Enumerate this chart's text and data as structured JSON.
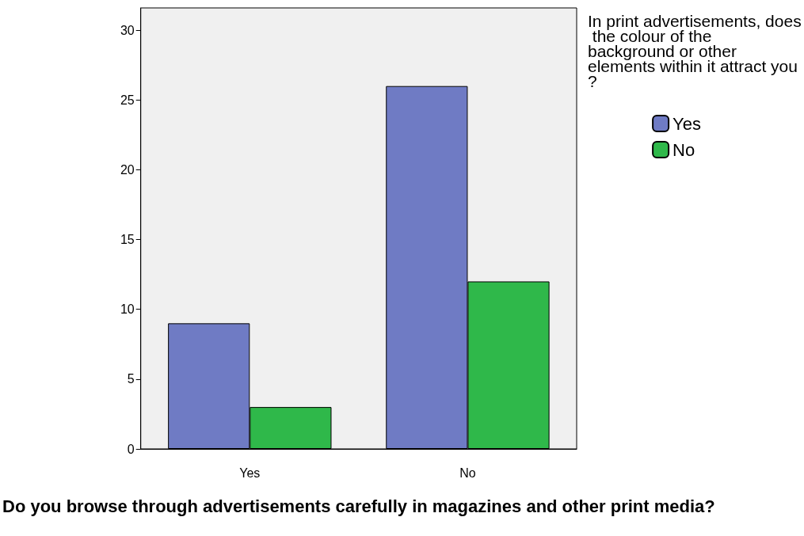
{
  "chart_data": {
    "type": "bar",
    "xlabel": "Do you browse through advertisements carefully in magazines and other print media?",
    "legend_title": "In print advertisements, does the colour of the background or other elements within it attract you?",
    "categories": [
      "Yes",
      "No"
    ],
    "series": [
      {
        "name": "Yes",
        "color": "#6f7bc4",
        "values": [
          9,
          26
        ]
      },
      {
        "name": "No",
        "color": "#2fb84a",
        "values": [
          3,
          12
        ]
      }
    ],
    "ylim": [
      0,
      31.6
    ],
    "yticks": [
      0,
      5,
      10,
      15,
      20,
      25,
      30
    ],
    "grid": false,
    "legend": "top right"
  }
}
